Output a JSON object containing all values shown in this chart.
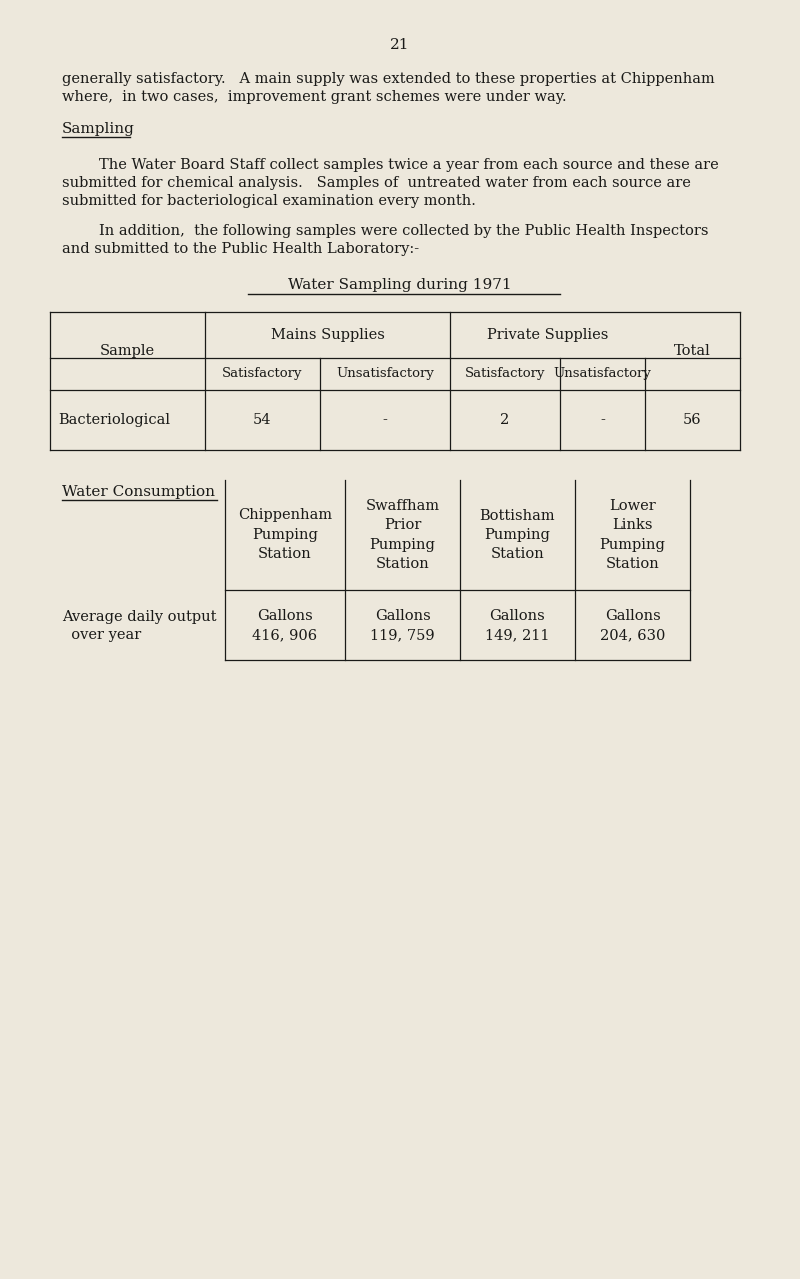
{
  "page_number": "21",
  "bg_color": "#ede8dc",
  "text_color": "#1a1a18",
  "paragraph1_line1": "generally satisfactory.   A main supply was extended to these properties at Chippenham",
  "paragraph1_line2": "where,  in two cases,  improvement grant schemes were under way.",
  "section_heading": "Sampling",
  "paragraph2_line1": "        The Water Board Staff collect samples twice a year from each source and these are",
  "paragraph2_line2": "submitted for chemical analysis.   Samples of  untreated water from each source are",
  "paragraph2_line3": "submitted for bacteriological examination every month.",
  "paragraph3_line1": "        In addition,  the following samples were collected by the Public Health Inspectors",
  "paragraph3_line2": "and submitted to the Public Health Laboratory:-",
  "table1_title": "Water Sampling during 1971",
  "table2_label": "Water Consumption",
  "table2_stations": [
    "Chippenham\nPumping\nStation",
    "Swaffham\nPrior\nPumping\nStation",
    "Bottisham\nPumping\nStation",
    "Lower\nLinks\nPumping\nStation"
  ],
  "table2_row_label_line1": "Average daily output",
  "table2_row_label_line2": "  over year",
  "table2_units": [
    "Gallons",
    "Gallons",
    "Gallons",
    "Gallons"
  ],
  "table2_values": [
    "416, 906",
    "119, 759",
    "149, 211",
    "204, 630"
  ],
  "font_size_body": 10.5,
  "font_size_small": 9.5,
  "font_size_heading": 11,
  "font_size_page_num": 11
}
